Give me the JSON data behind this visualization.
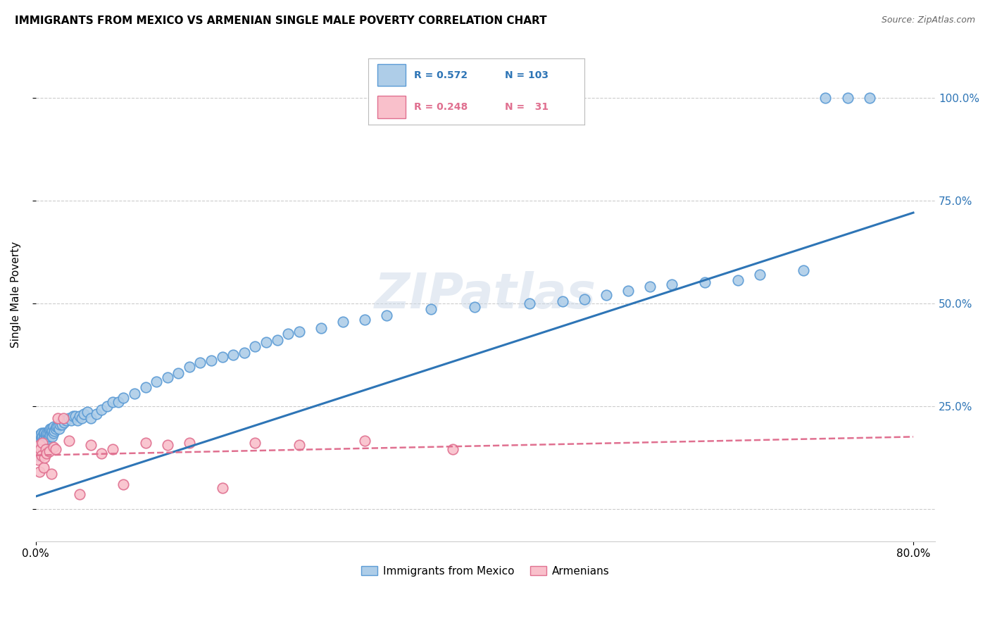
{
  "title": "IMMIGRANTS FROM MEXICO VS ARMENIAN SINGLE MALE POVERTY CORRELATION CHART",
  "source": "Source: ZipAtlas.com",
  "ylabel": "Single Male Poverty",
  "legend_blue_R": "0.572",
  "legend_blue_N": "103",
  "legend_pink_R": "0.248",
  "legend_pink_N": "31",
  "legend_blue_label": "Immigrants from Mexico",
  "legend_pink_label": "Armenians",
  "blue_color": "#aecde8",
  "blue_edge_color": "#5b9bd5",
  "pink_color": "#f9c0cb",
  "pink_edge_color": "#e07090",
  "blue_line_color": "#2e75b6",
  "pink_line_color": "#e07090",
  "watermark": "ZIPatlas",
  "blue_scatter_x": [
    0.001,
    0.001,
    0.002,
    0.002,
    0.002,
    0.003,
    0.003,
    0.003,
    0.004,
    0.004,
    0.004,
    0.005,
    0.005,
    0.005,
    0.005,
    0.006,
    0.006,
    0.007,
    0.007,
    0.007,
    0.008,
    0.008,
    0.008,
    0.009,
    0.009,
    0.01,
    0.01,
    0.01,
    0.011,
    0.011,
    0.012,
    0.012,
    0.013,
    0.013,
    0.014,
    0.014,
    0.015,
    0.015,
    0.016,
    0.016,
    0.017,
    0.018,
    0.019,
    0.02,
    0.021,
    0.022,
    0.023,
    0.024,
    0.025,
    0.026,
    0.028,
    0.03,
    0.032,
    0.034,
    0.036,
    0.038,
    0.04,
    0.042,
    0.044,
    0.047,
    0.05,
    0.055,
    0.06,
    0.065,
    0.07,
    0.075,
    0.08,
    0.09,
    0.1,
    0.11,
    0.12,
    0.13,
    0.14,
    0.15,
    0.16,
    0.17,
    0.18,
    0.19,
    0.2,
    0.21,
    0.22,
    0.23,
    0.24,
    0.26,
    0.28,
    0.3,
    0.32,
    0.36,
    0.4,
    0.45,
    0.48,
    0.5,
    0.52,
    0.54,
    0.56,
    0.58,
    0.61,
    0.64,
    0.66,
    0.7,
    0.72,
    0.74,
    0.76
  ],
  "blue_scatter_y": [
    0.155,
    0.17,
    0.13,
    0.16,
    0.175,
    0.14,
    0.16,
    0.175,
    0.145,
    0.165,
    0.18,
    0.15,
    0.165,
    0.175,
    0.185,
    0.16,
    0.175,
    0.155,
    0.17,
    0.185,
    0.16,
    0.175,
    0.185,
    0.165,
    0.18,
    0.165,
    0.175,
    0.185,
    0.17,
    0.185,
    0.175,
    0.19,
    0.18,
    0.195,
    0.185,
    0.195,
    0.175,
    0.19,
    0.185,
    0.2,
    0.19,
    0.195,
    0.2,
    0.2,
    0.195,
    0.205,
    0.21,
    0.205,
    0.215,
    0.21,
    0.215,
    0.22,
    0.215,
    0.225,
    0.225,
    0.215,
    0.225,
    0.22,
    0.23,
    0.235,
    0.22,
    0.23,
    0.24,
    0.25,
    0.26,
    0.26,
    0.27,
    0.28,
    0.295,
    0.31,
    0.32,
    0.33,
    0.345,
    0.355,
    0.36,
    0.37,
    0.375,
    0.38,
    0.395,
    0.405,
    0.41,
    0.425,
    0.43,
    0.44,
    0.455,
    0.46,
    0.47,
    0.485,
    0.49,
    0.5,
    0.505,
    0.51,
    0.52,
    0.53,
    0.54,
    0.545,
    0.55,
    0.555,
    0.57,
    0.58,
    1.0,
    1.0,
    1.0
  ],
  "pink_scatter_x": [
    0.001,
    0.002,
    0.003,
    0.003,
    0.004,
    0.005,
    0.006,
    0.007,
    0.008,
    0.009,
    0.01,
    0.012,
    0.014,
    0.016,
    0.018,
    0.02,
    0.025,
    0.03,
    0.04,
    0.05,
    0.06,
    0.07,
    0.08,
    0.1,
    0.12,
    0.14,
    0.17,
    0.2,
    0.24,
    0.3,
    0.38
  ],
  "pink_scatter_y": [
    0.14,
    0.12,
    0.155,
    0.09,
    0.145,
    0.13,
    0.16,
    0.1,
    0.125,
    0.145,
    0.135,
    0.14,
    0.085,
    0.15,
    0.145,
    0.22,
    0.22,
    0.165,
    0.035,
    0.155,
    0.135,
    0.145,
    0.06,
    0.16,
    0.155,
    0.16,
    0.05,
    0.16,
    0.155,
    0.165,
    0.145
  ],
  "blue_line_x0": 0.0,
  "blue_line_y0": 0.03,
  "blue_line_x1": 0.8,
  "blue_line_y1": 0.72,
  "pink_line_x0": 0.0,
  "pink_line_y0": 0.13,
  "pink_line_x1": 0.8,
  "pink_line_y1": 0.175,
  "xlim": [
    0.0,
    0.82
  ],
  "ylim": [
    -0.08,
    1.12
  ],
  "ytick_vals": [
    0.0,
    0.25,
    0.5,
    0.75,
    1.0
  ],
  "ytick_labels_right": [
    "",
    "25.0%",
    "50.0%",
    "75.0%",
    "100.0%"
  ]
}
